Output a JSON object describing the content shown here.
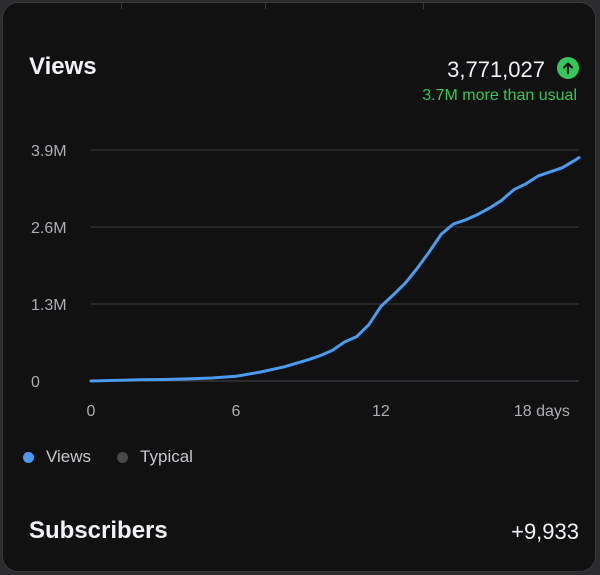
{
  "header": {
    "title": "Views",
    "total": "3,771,027",
    "delta": "3.7M more than usual"
  },
  "colors": {
    "views": "#4a9cf0",
    "typical": "#48484a",
    "positive": "#34c759",
    "grid": "#3a3a3c"
  },
  "icons": {
    "trend": "arrow-up-icon"
  },
  "chart_data": {
    "type": "line",
    "title": "Views",
    "xlabel": "",
    "ylabel": "",
    "x_ticks": [
      {
        "value": 0,
        "label": "0"
      },
      {
        "value": 6,
        "label": "6"
      },
      {
        "value": 12,
        "label": "12"
      },
      {
        "value": 18,
        "label": "18 days"
      }
    ],
    "y_ticks": [
      {
        "value": 0,
        "label": "0"
      },
      {
        "value": 1300000,
        "label": "1.3M"
      },
      {
        "value": 2600000,
        "label": "2.6M"
      },
      {
        "value": 3900000,
        "label": "3.9M"
      }
    ],
    "xlim": [
      0,
      20.2
    ],
    "ylim": [
      0,
      3900000
    ],
    "grid": true,
    "legend_position": "bottom-left",
    "series": [
      {
        "name": "Views",
        "x": [
          0,
          1,
          2,
          3,
          4,
          5,
          6,
          7,
          8,
          9,
          9.5,
          10,
          10.5,
          11,
          11.5,
          12,
          12.5,
          13,
          13.5,
          14,
          14.5,
          15,
          15.5,
          16,
          16.5,
          17,
          17.5,
          18,
          18.5,
          19,
          19.5,
          20,
          20.2
        ],
        "values": [
          0,
          10000,
          20000,
          25000,
          35000,
          50000,
          80000,
          150000,
          240000,
          360000,
          430000,
          520000,
          660000,
          750000,
          950000,
          1260000,
          1450000,
          1650000,
          1900000,
          2180000,
          2480000,
          2650000,
          2720000,
          2810000,
          2920000,
          3050000,
          3230000,
          3330000,
          3460000,
          3530000,
          3600000,
          3720000,
          3771027
        ]
      },
      {
        "name": "Typical",
        "x": [],
        "values": []
      }
    ]
  },
  "legend": {
    "views": "Views",
    "typical": "Typical"
  },
  "subscribers": {
    "title": "Subscribers",
    "value": "+9,933"
  }
}
